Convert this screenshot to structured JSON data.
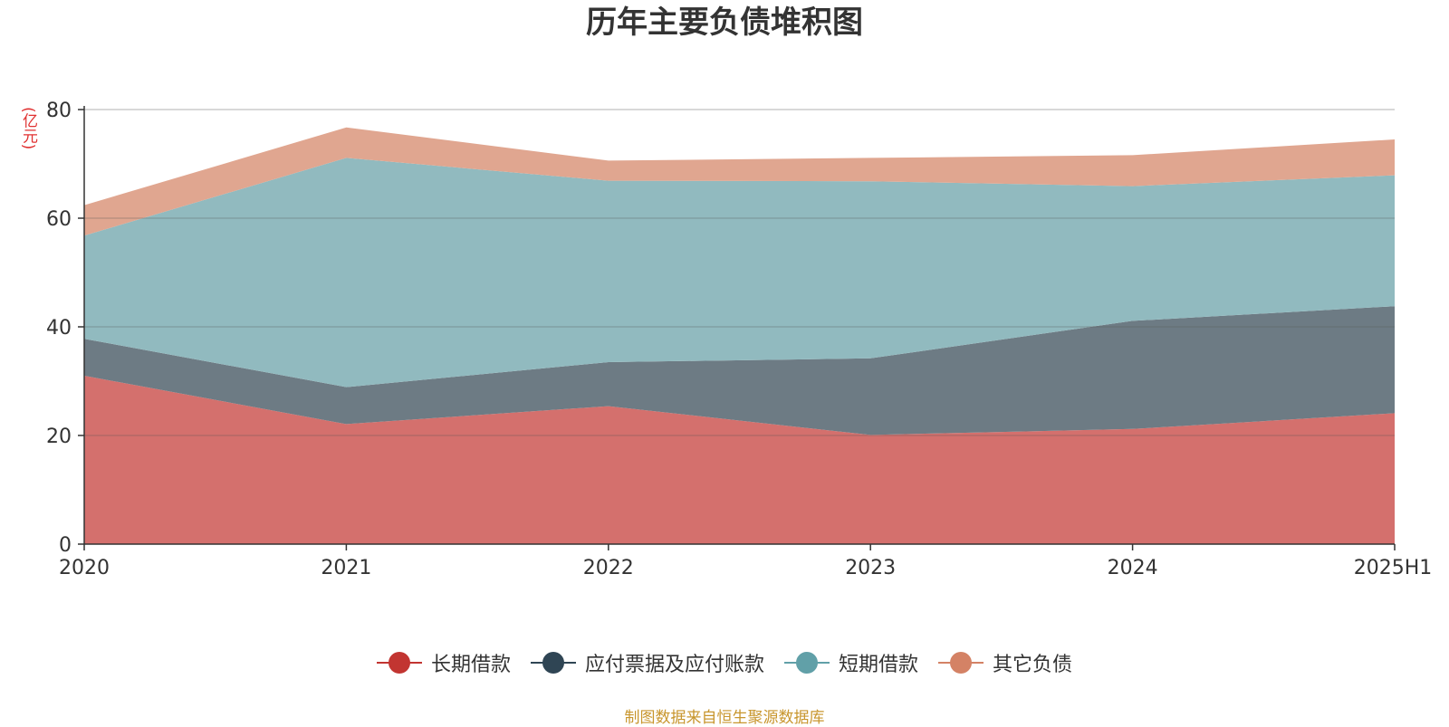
{
  "chart_data": {
    "type": "area",
    "stacked": true,
    "title": "历年主要负债堆积图",
    "ylabel": "(亿元)",
    "xlabel": "",
    "categories": [
      "2020",
      "2021",
      "2022",
      "2023",
      "2024",
      "2025H1"
    ],
    "ylim": [
      0,
      80
    ],
    "yticks": [
      0,
      20,
      40,
      60,
      80
    ],
    "grid": true,
    "legend_position": "bottom",
    "series": [
      {
        "name": "长期借款",
        "color": "#c23531",
        "fill": "#d4706d",
        "values": [
          31,
          22.1,
          25.4,
          20.1,
          21.2,
          24.1
        ]
      },
      {
        "name": "应付票据及应付账款",
        "color": "#2f4554",
        "fill": "#6d7b84",
        "values": [
          6.8,
          6.8,
          8.1,
          14.1,
          19.9,
          19.7
        ]
      },
      {
        "name": "短期借款",
        "color": "#61a0a8",
        "fill": "#91babf",
        "values": [
          19,
          42.2,
          33.4,
          32.6,
          24.8,
          24.1
        ]
      },
      {
        "name": "其它负债",
        "color": "#d48265",
        "fill": "#e0a690",
        "values": [
          5.6,
          5.6,
          3.7,
          4.3,
          5.7,
          6.6
        ]
      }
    ]
  },
  "source_note": "制图数据来自恒生聚源数据库"
}
